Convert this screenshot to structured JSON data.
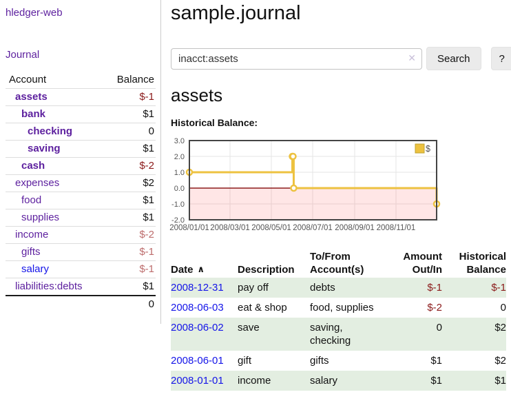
{
  "sidebar": {
    "brand": "hledger-web",
    "nav": {
      "journal": "Journal"
    },
    "accounts_table": {
      "headers": {
        "account": "Account",
        "balance": "Balance"
      },
      "rows": [
        {
          "name": "assets",
          "balance": "$-1"
        },
        {
          "name": "bank",
          "balance": "$1"
        },
        {
          "name": "checking",
          "balance": "0"
        },
        {
          "name": "saving",
          "balance": "$1"
        },
        {
          "name": "cash",
          "balance": "$-2"
        },
        {
          "name": "expenses",
          "balance": "$2"
        },
        {
          "name": "food",
          "balance": "$1"
        },
        {
          "name": "supplies",
          "balance": "$1"
        },
        {
          "name": "income",
          "balance": "$-2"
        },
        {
          "name": "gifts",
          "balance": "$-1"
        },
        {
          "name": "salary",
          "balance": "$-1"
        },
        {
          "name": "liabilities:debts",
          "balance": "$1"
        }
      ],
      "total": "0"
    }
  },
  "main": {
    "title": "sample.journal",
    "search": {
      "value": "inacct:assets",
      "clear_icon": "✕",
      "button": "Search",
      "help_button": "?"
    },
    "account_heading": "assets",
    "chart_heading": "Historical Balance:"
  },
  "chart_data": {
    "type": "line",
    "title": "Historical Balance:",
    "series": [
      {
        "name": "$",
        "color": "#edc240",
        "step": true,
        "points": [
          {
            "date": "2008-01-01",
            "day": 0,
            "value": 1
          },
          {
            "date": "2008-06-01",
            "day": 152,
            "value": 2
          },
          {
            "date": "2008-06-02",
            "day": 153,
            "value": 2
          },
          {
            "date": "2008-06-03",
            "day": 154,
            "value": 0
          },
          {
            "date": "2008-12-31",
            "day": 365,
            "value": -1
          }
        ]
      }
    ],
    "xlim": [
      0,
      365
    ],
    "ylim": [
      -2,
      3
    ],
    "yticks": [
      {
        "value": 3,
        "label": "3.0"
      },
      {
        "value": 2,
        "label": "2.0"
      },
      {
        "value": 1,
        "label": "1.0"
      },
      {
        "value": 0,
        "label": "0.0"
      },
      {
        "value": -1,
        "label": "-1.0"
      },
      {
        "value": -2,
        "label": "-2.0"
      }
    ],
    "xticks": [
      {
        "day": 0,
        "label": "2008/01/01"
      },
      {
        "day": 60,
        "label": "2008/03/01"
      },
      {
        "day": 121,
        "label": "2008/05/01"
      },
      {
        "day": 182,
        "label": "2008/07/01"
      },
      {
        "day": 244,
        "label": "2008/09/01"
      },
      {
        "day": 305,
        "label": "2008/11/01"
      }
    ],
    "legend": {
      "label": "$",
      "position": "top-right"
    },
    "negative_region_fill": "rgba(255,100,100,0.16)",
    "zero_line_color": "#8b1a1a",
    "grid": true
  },
  "register": {
    "headers": {
      "date": "Date",
      "sort_icon": "∧",
      "description": "Description",
      "account": "To/From Account(s)",
      "amount": "Amount Out/In",
      "balance": "Historical Balance"
    },
    "rows": [
      {
        "date": "2008-12-31",
        "description": "pay off",
        "account": "debts",
        "amount": "$-1",
        "balance": "$-1"
      },
      {
        "date": "2008-06-03",
        "description": "eat & shop",
        "account": "food, supplies",
        "amount": "$-2",
        "balance": "0"
      },
      {
        "date": "2008-06-02",
        "description": "save",
        "account": "saving, checking",
        "amount": "0",
        "balance": "$2"
      },
      {
        "date": "2008-06-01",
        "description": "gift",
        "account": "gifts",
        "amount": "$1",
        "balance": "$2"
      },
      {
        "date": "2008-01-01",
        "description": "income",
        "account": "salary",
        "amount": "$1",
        "balance": "$1"
      }
    ]
  },
  "colors": {
    "link_purple": "#5c1f9e",
    "link_blue": "#1414e8",
    "negative_dark_red": "#8b1a1a",
    "negative_muted_red": "#bd6d6d",
    "row_stripe_green": "#e3eee1",
    "chart_line_gold": "#edc240",
    "chart_border_gray": "#444444"
  }
}
